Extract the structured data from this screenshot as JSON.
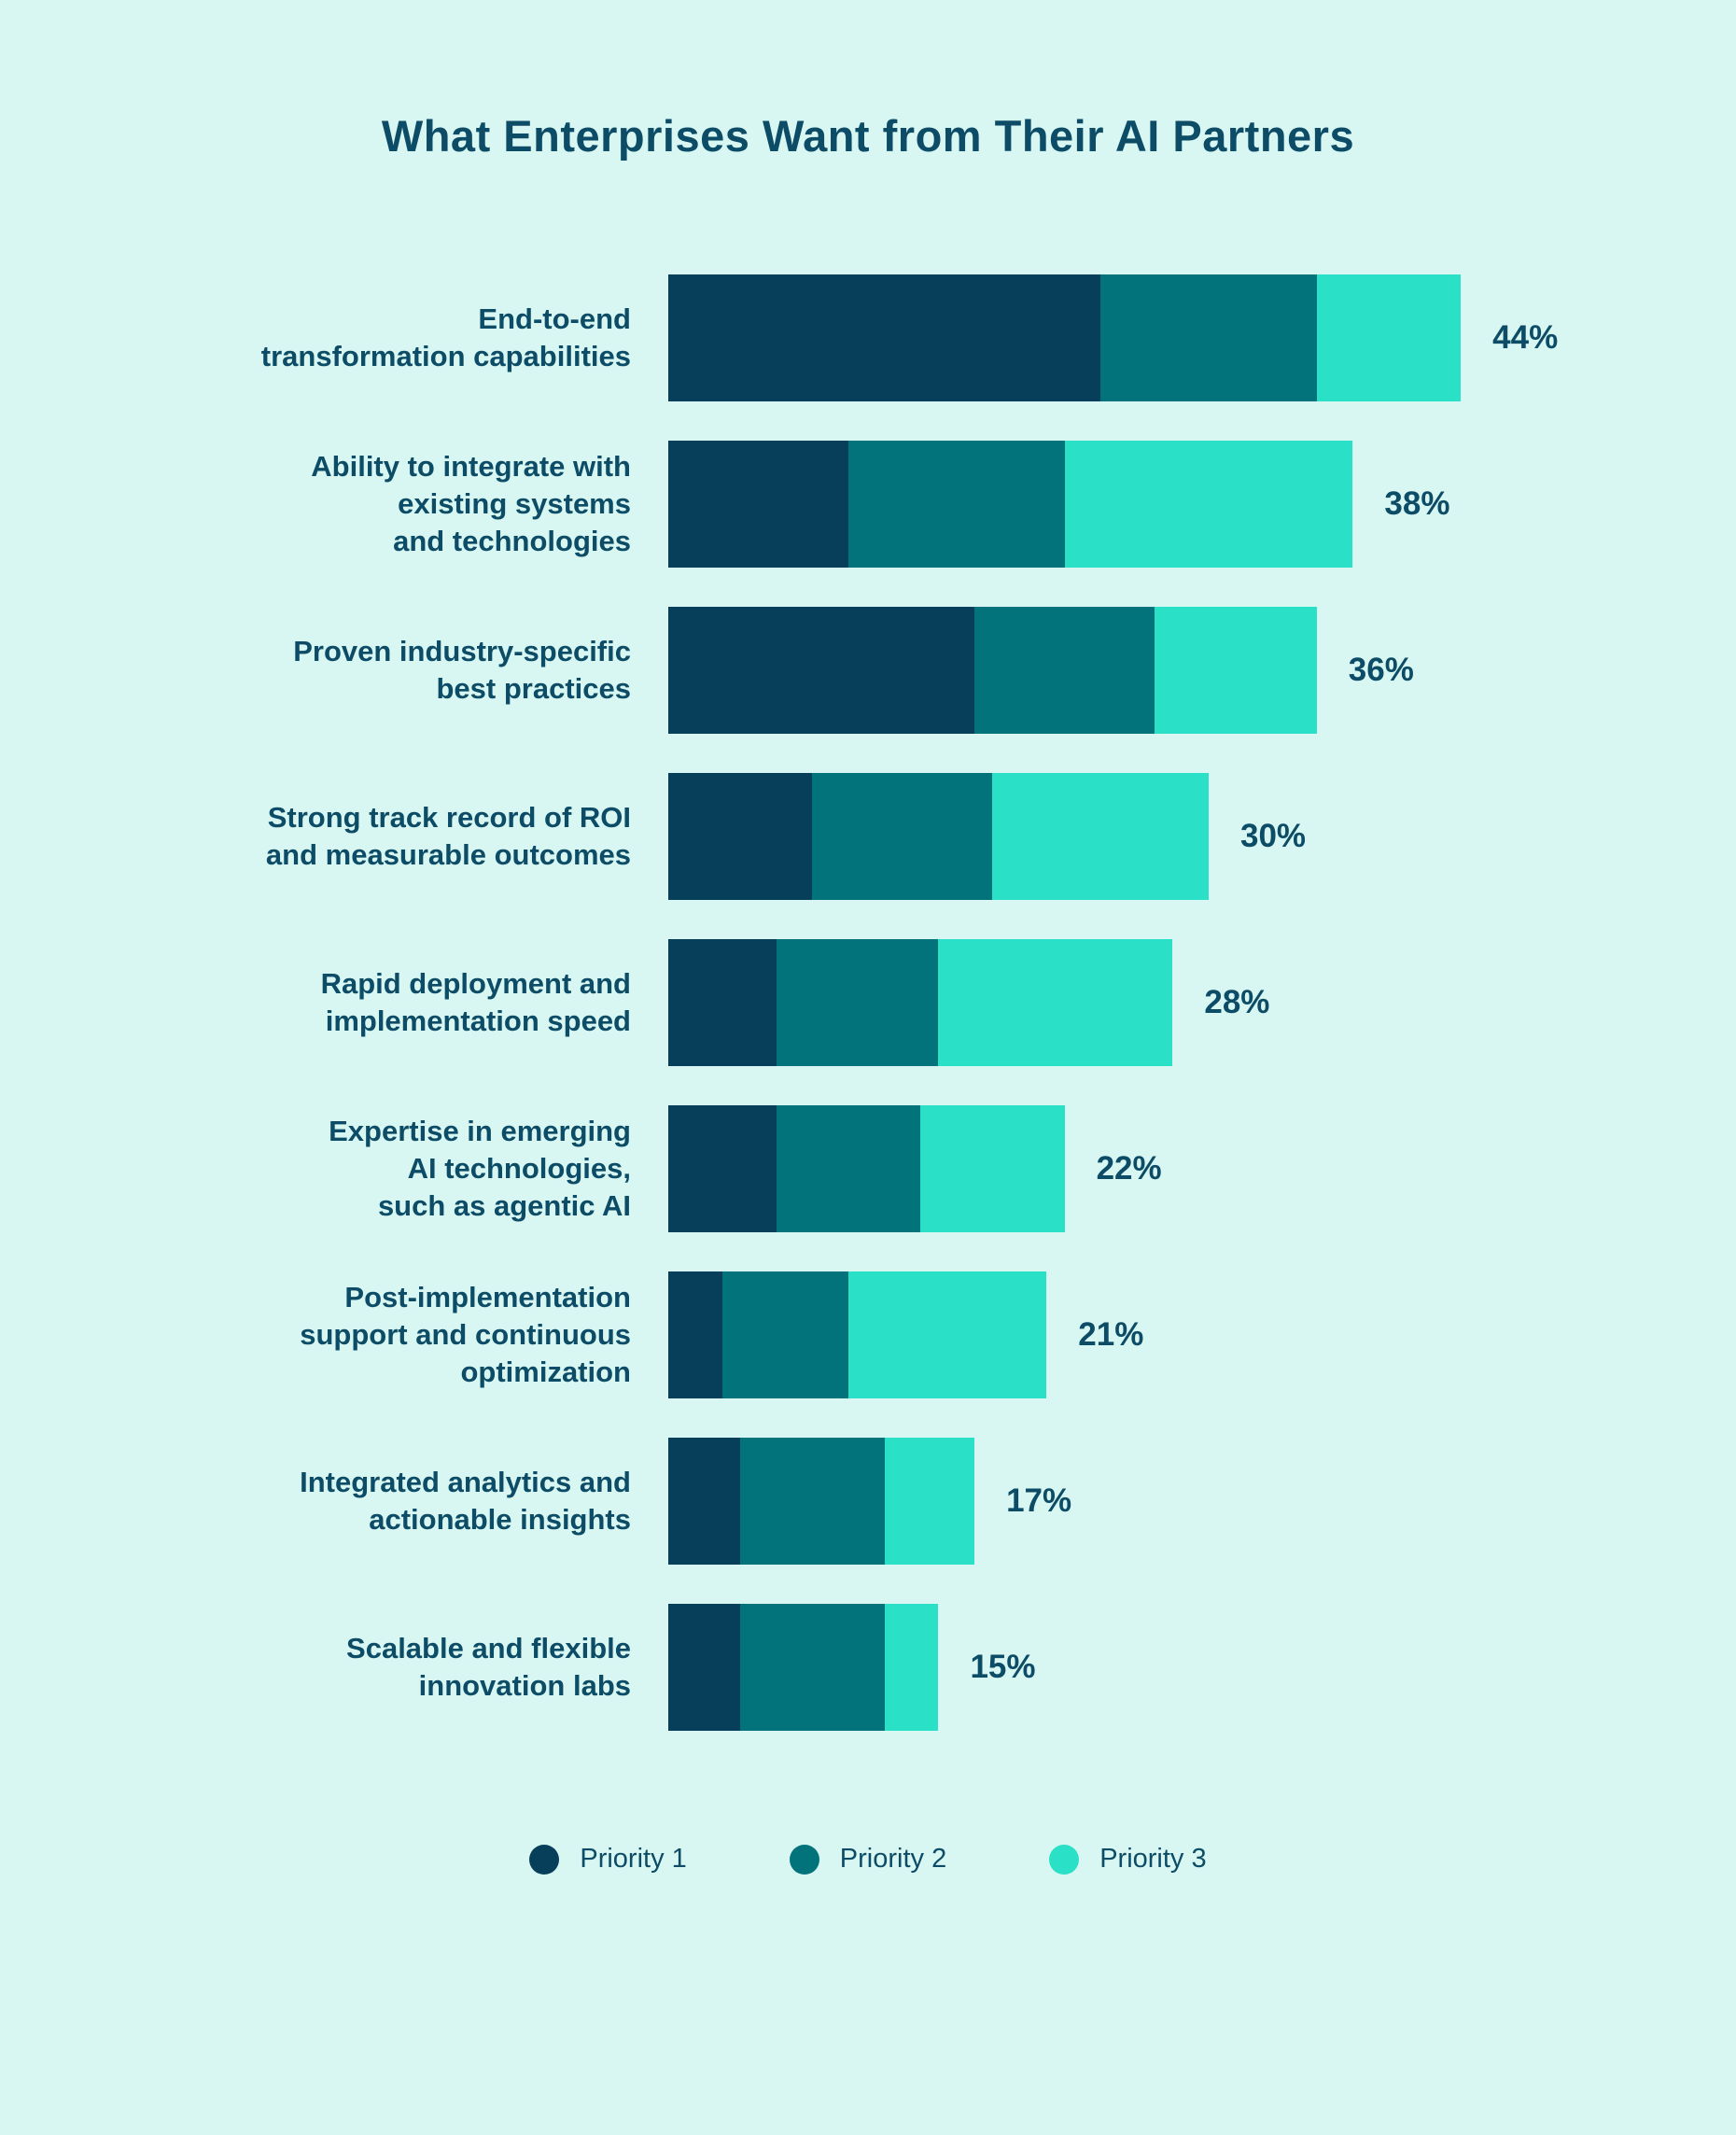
{
  "title": "What Enterprises Want from Their AI Partners",
  "colors": {
    "background": "#d8f6f2",
    "priority1": "#073f5b",
    "priority2": "#03737b",
    "priority3": "#2ae0c6",
    "text": "#0d4c66"
  },
  "legend": [
    {
      "label": "Priority 1",
      "color": "#073f5b"
    },
    {
      "label": "Priority 2",
      "color": "#03737b"
    },
    {
      "label": "Priority 3",
      "color": "#2ae0c6"
    }
  ],
  "rows": [
    {
      "label": "End-to-end\ntransformation capabilities",
      "segments": [
        24,
        12,
        8
      ],
      "total_label": "44%"
    },
    {
      "label": "Ability to integrate with\nexisting systems\nand technologies",
      "segments": [
        10,
        12,
        16
      ],
      "total_label": "38%"
    },
    {
      "label": "Proven industry-specific\nbest practices",
      "segments": [
        17,
        10,
        9
      ],
      "total_label": "36%"
    },
    {
      "label": "Strong track record of ROI\nand measurable outcomes",
      "segments": [
        8,
        10,
        12
      ],
      "total_label": "30%"
    },
    {
      "label": "Rapid deployment and\nimplementation speed",
      "segments": [
        6,
        9,
        13
      ],
      "total_label": "28%"
    },
    {
      "label": "Expertise in emerging\nAI technologies,\nsuch as agentic AI",
      "segments": [
        6,
        8,
        8
      ],
      "total_label": "22%"
    },
    {
      "label": "Post-implementation\nsupport and continuous\noptimization",
      "segments": [
        3,
        7,
        11
      ],
      "total_label": "21%"
    },
    {
      "label": "Integrated analytics and\nactionable insights",
      "segments": [
        4,
        8,
        5
      ],
      "total_label": "17%"
    },
    {
      "label": "Scalable and flexible\ninnovation labs",
      "segments": [
        4,
        8,
        3
      ],
      "total_label": "15%"
    }
  ],
  "chart_data": {
    "type": "bar",
    "orientation": "horizontal",
    "stacked": true,
    "title": "What Enterprises Want from Their AI Partners",
    "categories": [
      "End-to-end transformation capabilities",
      "Ability to integrate with existing systems and technologies",
      "Proven industry-specific best practices",
      "Strong track record of ROI and measurable outcomes",
      "Rapid deployment and implementation speed",
      "Expertise in emerging AI technologies, such as agentic AI",
      "Post-implementation support and continuous optimization",
      "Integrated analytics and actionable insights",
      "Scalable and flexible innovation labs"
    ],
    "series": [
      {
        "name": "Priority 1",
        "values": [
          24,
          10,
          17,
          8,
          6,
          6,
          3,
          4,
          4
        ]
      },
      {
        "name": "Priority 2",
        "values": [
          12,
          12,
          10,
          10,
          9,
          8,
          7,
          8,
          8
        ]
      },
      {
        "name": "Priority 3",
        "values": [
          8,
          16,
          9,
          12,
          13,
          8,
          11,
          5,
          3
        ]
      }
    ],
    "totals": [
      44,
      38,
      36,
      30,
      28,
      22,
      21,
      17,
      15
    ],
    "total_labels": [
      "44%",
      "38%",
      "36%",
      "30%",
      "28%",
      "22%",
      "21%",
      "17%",
      "15%"
    ],
    "xlabel": "",
    "ylabel": "",
    "xlim": [
      0,
      47
    ],
    "grid": false,
    "legend_position": "bottom"
  }
}
